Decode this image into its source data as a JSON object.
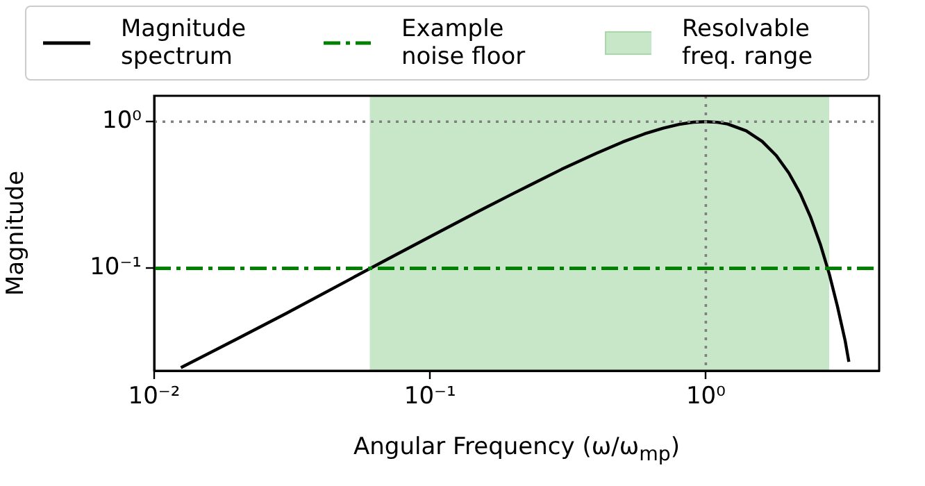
{
  "chart_data": {
    "type": "line",
    "xlabel": "Angular Frequency (ω/ω$_{mp}$)",
    "ylabel": "Magnitude",
    "log": "xy",
    "grid": false,
    "legend": "top",
    "marker": "none",
    "line_style": "solid",
    "xlim": [
      0.01,
      4.25
    ],
    "ylim": [
      0.02,
      1.5
    ],
    "xticks": [
      {
        "value": 0.01,
        "label": "10⁻²"
      },
      {
        "value": 0.1,
        "label": "10⁻¹"
      },
      {
        "value": 1,
        "label": "10⁰"
      }
    ],
    "yticks": [
      {
        "value": 0.1,
        "label": "10⁻¹"
      },
      {
        "value": 1,
        "label": "10⁰"
      }
    ],
    "series": [
      {
        "name": "Magnitude spectrum",
        "color": "#000000",
        "x": [
          0.0125,
          0.02,
          0.03,
          0.05,
          0.07,
          0.1,
          0.15,
          0.2,
          0.3,
          0.4,
          0.5,
          0.6,
          0.7,
          0.8,
          0.9,
          1.0,
          1.1,
          1.2,
          1.4,
          1.6,
          1.8,
          2.0,
          2.2,
          2.4,
          2.6,
          2.8,
          3.0,
          3.2,
          3.3
        ],
        "values": [
          0.021,
          0.033,
          0.049,
          0.082,
          0.115,
          0.164,
          0.245,
          0.323,
          0.473,
          0.607,
          0.727,
          0.826,
          0.903,
          0.958,
          0.991,
          1.0,
          0.99,
          0.963,
          0.866,
          0.733,
          0.587,
          0.446,
          0.323,
          0.222,
          0.146,
          0.092,
          0.055,
          0.032,
          0.023
        ]
      }
    ],
    "ref_lines": [
      {
        "axis": "y",
        "value": 1,
        "color": "#808080",
        "line_style": "dotted"
      },
      {
        "axis": "x",
        "value": 1,
        "color": "#808080",
        "line_style": "dotted"
      },
      {
        "axis": "y",
        "value": 0.1,
        "label": "Example noise floor",
        "color": "#008000",
        "line_style": "dashdot"
      }
    ],
    "bands": [
      {
        "axis": "x",
        "from": 0.0605,
        "to": 2.8,
        "label": "Resolvable freq. range",
        "color": "#c8e6c8"
      }
    ]
  }
}
